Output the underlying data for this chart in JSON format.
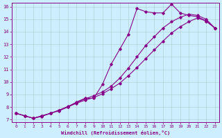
{
  "xlabel": "Windchill (Refroidissement éolien,°C)",
  "bg_color": "#cceeff",
  "line_color": "#880088",
  "grid_color": "#aacccc",
  "xlim": [
    -0.5,
    23.5
  ],
  "ylim": [
    6.8,
    16.3
  ],
  "xticks": [
    0,
    1,
    2,
    3,
    4,
    5,
    6,
    7,
    8,
    9,
    10,
    11,
    12,
    13,
    14,
    15,
    16,
    17,
    18,
    19,
    20,
    21,
    22,
    23
  ],
  "yticks": [
    7,
    8,
    9,
    10,
    11,
    12,
    13,
    14,
    15,
    16
  ],
  "line1_x": [
    0,
    1,
    2,
    3,
    4,
    5,
    6,
    7,
    8,
    9,
    10,
    11,
    12,
    13,
    14,
    15,
    16,
    17,
    18,
    19,
    20,
    21,
    22,
    23
  ],
  "line1_y": [
    7.5,
    7.3,
    7.1,
    7.25,
    7.5,
    7.7,
    8.0,
    8.4,
    8.7,
    8.7,
    9.8,
    11.4,
    12.6,
    13.8,
    15.85,
    15.6,
    15.5,
    15.5,
    16.2,
    15.5,
    15.3,
    15.2,
    14.85,
    14.3
  ],
  "line2_x": [
    0,
    1,
    2,
    3,
    4,
    5,
    6,
    7,
    8,
    9,
    10,
    11,
    12,
    13,
    14,
    15,
    16,
    17,
    18,
    19,
    20,
    21,
    22,
    23
  ],
  "line2_y": [
    7.5,
    7.3,
    7.1,
    7.3,
    7.5,
    7.75,
    8.05,
    8.35,
    8.65,
    8.9,
    9.2,
    9.65,
    10.3,
    11.1,
    12.0,
    12.9,
    13.6,
    14.3,
    14.8,
    15.15,
    15.4,
    15.3,
    15.0,
    14.3
  ],
  "line3_x": [
    0,
    1,
    2,
    3,
    4,
    5,
    6,
    7,
    8,
    9,
    10,
    11,
    12,
    13,
    14,
    15,
    16,
    17,
    18,
    19,
    20,
    21,
    22,
    23
  ],
  "line3_y": [
    7.5,
    7.3,
    7.1,
    7.3,
    7.5,
    7.75,
    8.0,
    8.3,
    8.55,
    8.75,
    9.05,
    9.45,
    9.9,
    10.5,
    11.15,
    11.85,
    12.55,
    13.25,
    13.9,
    14.4,
    14.8,
    15.1,
    14.85,
    14.3
  ]
}
